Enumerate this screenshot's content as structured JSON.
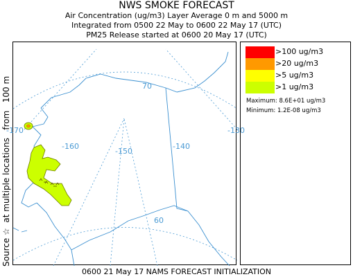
{
  "header": {
    "title": "NWS SMOKE FORECAST",
    "line1": "Air Concentration (ug/m3) Layer Average    0 m and  5000 m",
    "line2": "Integrated from 0500 22 May to 0600 22 May 17 (UTC)",
    "line3": "PM25 Release started at 0600 20 May 17 (UTC)"
  },
  "side_label": "Source ☆  at multiple locations   from   100 m",
  "footer": "0600 21 May 17 NAMS FORECAST INITIALIZATION",
  "map": {
    "longitude_labels": [
      "-170",
      "-160",
      "-150",
      "-140",
      "-130"
    ],
    "latitude_labels": [
      "70",
      "60"
    ],
    "colors": {
      "gridlines": "#4a9ad4",
      "coastline": "#3a8fd0",
      "plume_fill": "#ccff00",
      "plume_outline": "#6b7a00"
    }
  },
  "legend": {
    "items": [
      {
        "label": ">100 ug/m3",
        "color": "#ff0000"
      },
      {
        "label": ">20 ug/m3",
        "color": "#ff9900"
      },
      {
        "label": ">5 ug/m3",
        "color": "#ffff00"
      },
      {
        "label": ">1 ug/m3",
        "color": "#ccff00"
      }
    ],
    "maximum": "Maximum: 8.6E+01 ug/m3",
    "minimum": "Minimum: 1.2E-08 ug/m3"
  }
}
